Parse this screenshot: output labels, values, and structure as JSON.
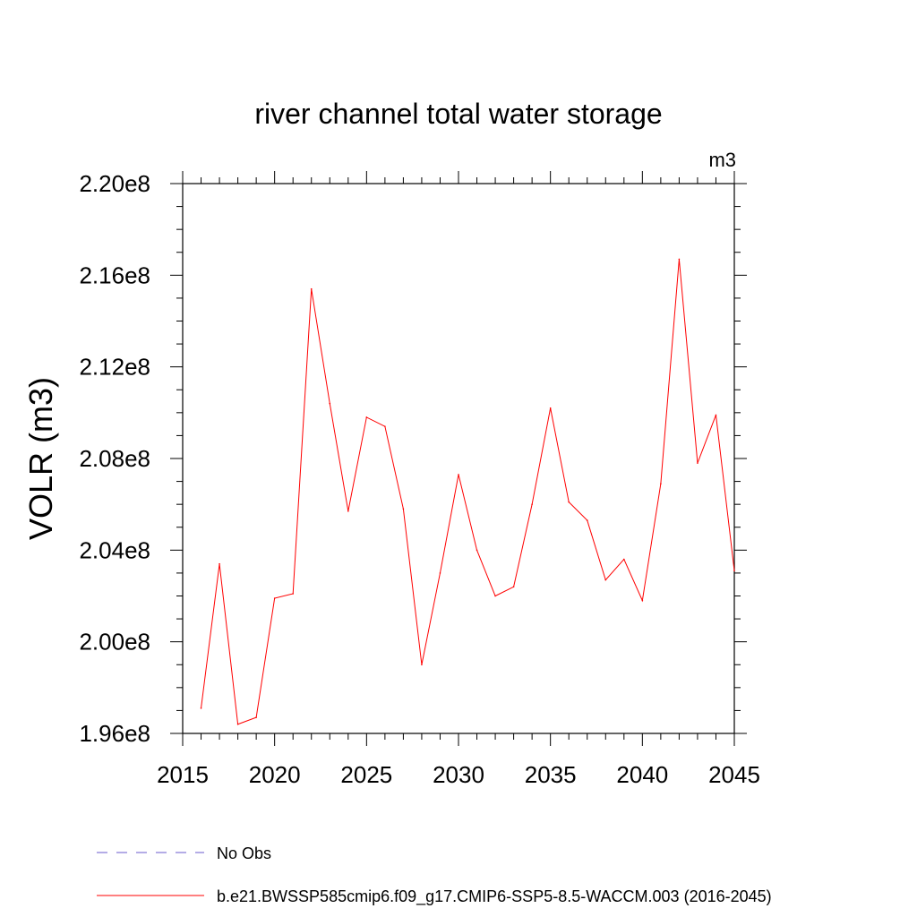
{
  "chart_data": {
    "type": "line",
    "title": "river channel total water storage",
    "units_label": "m3",
    "ylabel": "VOLR  (m3)",
    "xlabel": "",
    "xlim": [
      2015,
      2045
    ],
    "ylim": [
      196000000.0,
      220000000.0
    ],
    "x_ticks": [
      2015,
      2020,
      2025,
      2030,
      2035,
      2040,
      2045
    ],
    "x_tick_labels": [
      "2015",
      "2020",
      "2025",
      "2030",
      "2035",
      "2040",
      "2045"
    ],
    "y_ticks": [
      196000000.0,
      200000000.0,
      204000000.0,
      208000000.0,
      212000000.0,
      216000000.0,
      220000000.0
    ],
    "y_tick_labels": [
      "1.96e8",
      "2.00e8",
      "2.04e8",
      "2.08e8",
      "2.12e8",
      "2.16e8",
      "2.20e8"
    ],
    "grid": false,
    "legend_position": "bottom-left",
    "series": [
      {
        "name": "No Obs",
        "color": "#6a5acd",
        "dash": "dashed",
        "x": [],
        "values": []
      },
      {
        "name": "b.e21.BWSSP585cmip6.f09_g17.CMIP6-SSP5-8.5-WACCM.003 (2016-2045)",
        "color": "#ff0000",
        "dash": "solid",
        "x": [
          2016,
          2017,
          2018,
          2019,
          2020,
          2021,
          2022,
          2023,
          2024,
          2025,
          2026,
          2027,
          2028,
          2029,
          2030,
          2031,
          2032,
          2033,
          2034,
          2035,
          2036,
          2037,
          2038,
          2039,
          2040,
          2041,
          2042,
          2043,
          2044,
          2045
        ],
        "values": [
          197100000.0,
          203400000.0,
          196400000.0,
          196700000.0,
          201900000.0,
          202100000.0,
          215400000.0,
          210400000.0,
          205700000.0,
          209800000.0,
          209400000.0,
          205800000.0,
          199000000.0,
          203000000.0,
          207300000.0,
          204000000.0,
          202000000.0,
          202400000.0,
          206000000.0,
          210200000.0,
          206100000.0,
          205300000.0,
          202700000.0,
          203600000.0,
          201800000.0,
          206900000.0,
          216700000.0,
          207800000.0,
          209900000.0,
          203100000.0
        ]
      }
    ]
  }
}
